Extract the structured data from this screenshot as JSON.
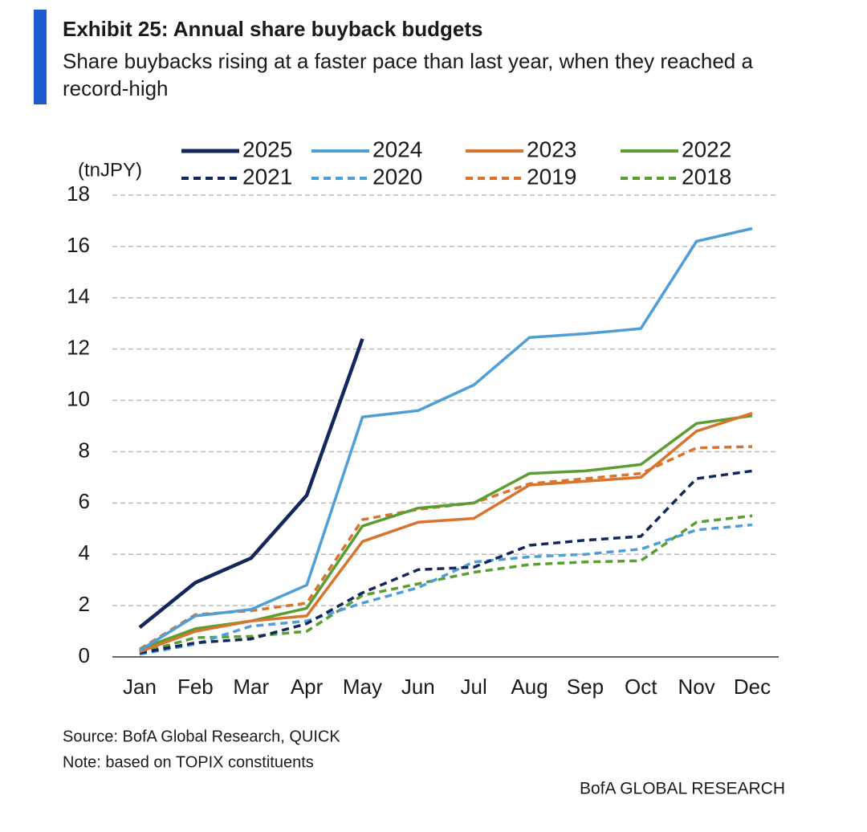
{
  "chart_data": {
    "type": "line",
    "title": "Exhibit 25: Annual share buyback budgets",
    "subtitle": [
      "Share buybacks rising at a faster pace than last year, when they reached a",
      "record-high"
    ],
    "y_label": "(tnJPY)",
    "categories": [
      "Jan",
      "Feb",
      "Mar",
      "Apr",
      "May",
      "Jun",
      "Jul",
      "Aug",
      "Sep",
      "Oct",
      "Nov",
      "Dec"
    ],
    "series": [
      {
        "name": "2025",
        "color": "#14275c",
        "style": "solid",
        "values": [
          1.15,
          2.9,
          3.85,
          6.3,
          12.4,
          null,
          null,
          null,
          null,
          null,
          null,
          null
        ]
      },
      {
        "name": "2024",
        "color": "#4f9fd6",
        "style": "solid",
        "values": [
          0.25,
          1.6,
          1.85,
          2.8,
          9.35,
          9.6,
          10.6,
          12.45,
          12.6,
          12.8,
          16.2,
          16.7
        ]
      },
      {
        "name": "2023",
        "color": "#d9742f",
        "style": "solid",
        "values": [
          0.2,
          1.0,
          1.4,
          1.6,
          4.5,
          5.25,
          5.4,
          6.7,
          6.85,
          7.0,
          8.8,
          9.5
        ]
      },
      {
        "name": "2022",
        "color": "#5a9e32",
        "style": "solid",
        "values": [
          0.3,
          1.1,
          1.4,
          1.9,
          5.1,
          5.8,
          6.0,
          7.15,
          7.25,
          7.5,
          9.1,
          9.4
        ]
      },
      {
        "name": "2021",
        "color": "#14275c",
        "style": "dashed",
        "values": [
          0.15,
          0.55,
          0.7,
          1.3,
          2.5,
          3.4,
          3.5,
          4.35,
          4.55,
          4.7,
          6.95,
          7.25
        ]
      },
      {
        "name": "2020",
        "color": "#4f9fd6",
        "style": "dashed",
        "values": [
          0.1,
          0.5,
          1.2,
          1.4,
          2.1,
          2.7,
          3.7,
          3.9,
          4.0,
          4.2,
          4.95,
          5.15
        ]
      },
      {
        "name": "2019",
        "color": "#d9742f",
        "style": "dashed",
        "values": [
          0.3,
          1.65,
          1.8,
          2.1,
          5.35,
          5.75,
          6.0,
          6.75,
          6.95,
          7.15,
          8.15,
          8.2
        ]
      },
      {
        "name": "2018",
        "color": "#5a9e32",
        "style": "dashed",
        "values": [
          0.15,
          0.75,
          0.8,
          1.0,
          2.4,
          2.85,
          3.3,
          3.6,
          3.7,
          3.75,
          5.25,
          5.5
        ]
      }
    ],
    "ylim": [
      0,
      18
    ],
    "yticks": [
      0,
      2,
      4,
      6,
      8,
      10,
      12,
      14,
      16,
      18
    ],
    "grid": true,
    "source": "Source: BofA Global Research, QUICK",
    "note": "Note: based on TOPIX constituents",
    "footer": "BofA GLOBAL RESEARCH"
  }
}
